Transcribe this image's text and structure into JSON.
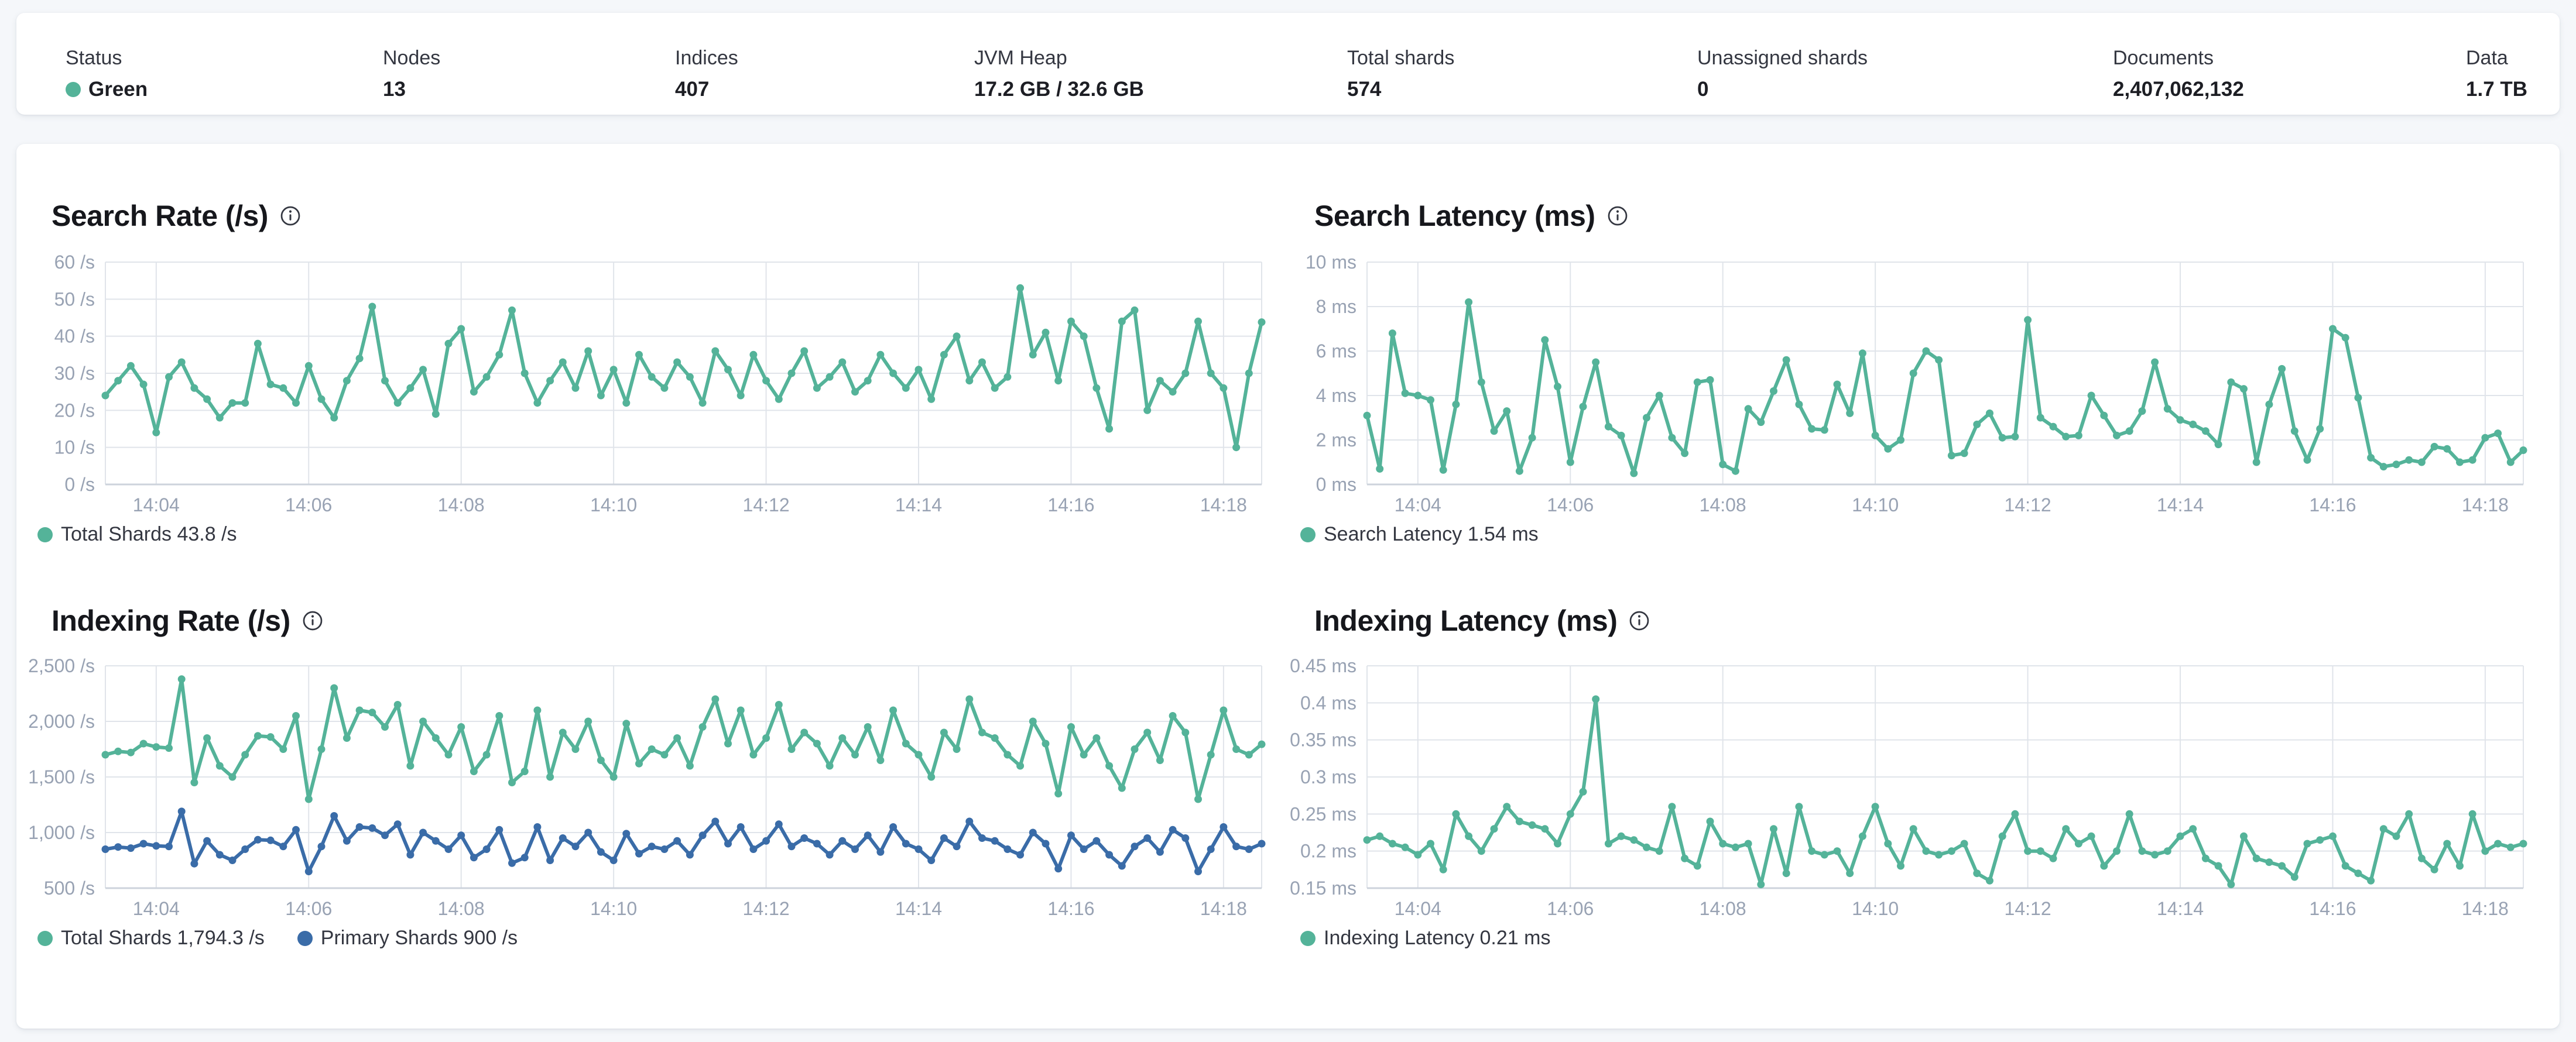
{
  "colors": {
    "teal": "#54B399",
    "blue": "#3A6CA8",
    "status_green": "#54B399",
    "axis_text": "#98A2B3",
    "grid": "#E0E4EA",
    "axis_line": "#CDD3DC"
  },
  "status_bar": {
    "items": [
      {
        "label": "Status",
        "value": "Green",
        "has_dot": true
      },
      {
        "label": "Nodes",
        "value": "13"
      },
      {
        "label": "Indices",
        "value": "407"
      },
      {
        "label": "JVM Heap",
        "value": "17.2 GB / 32.6 GB"
      },
      {
        "label": "Total shards",
        "value": "574"
      },
      {
        "label": "Unassigned shards",
        "value": "0"
      },
      {
        "label": "Documents",
        "value": "2,407,062,132"
      },
      {
        "label": "Data",
        "value": "1.7 TB"
      }
    ]
  },
  "chart_data": [
    {
      "type": "line",
      "title": "Search Rate (/s)",
      "ylim": [
        0,
        60
      ],
      "y_tick_values": [
        0,
        10,
        20,
        30,
        40,
        50,
        60
      ],
      "y_tick_labels": [
        "0 /s",
        "10 /s",
        "20 /s",
        "30 /s",
        "40 /s",
        "50 /s",
        "60 /s"
      ],
      "x_tick_labels": [
        "14:04",
        "14:06",
        "14:08",
        "14:10",
        "14:12",
        "14:14",
        "14:16",
        "14:18"
      ],
      "x_tick_indices": [
        4,
        16,
        28,
        40,
        52,
        64,
        76,
        88
      ],
      "grid": true,
      "legend_position": "bottom",
      "series": [
        {
          "name": "Total Shards",
          "color": "teal",
          "values": [
            24,
            28,
            32,
            27,
            14,
            29,
            33,
            26,
            23,
            18,
            22,
            22,
            38,
            27,
            26,
            22,
            32,
            23,
            18,
            28,
            34,
            48,
            28,
            22,
            26,
            31,
            19,
            38,
            42,
            25,
            29,
            35,
            47,
            30,
            22,
            28,
            33,
            26,
            36,
            24,
            31,
            22,
            35,
            29,
            26,
            33,
            29,
            22,
            36,
            31,
            24,
            35,
            28,
            23,
            30,
            36,
            26,
            29,
            33,
            25,
            28,
            35,
            30,
            26,
            31,
            23,
            35,
            40,
            28,
            33,
            26,
            29,
            53,
            35,
            41,
            28,
            44,
            40,
            26,
            15,
            44,
            47,
            20,
            28,
            25,
            30,
            44,
            30,
            26,
            10,
            30,
            43.8
          ]
        }
      ],
      "legend": [
        {
          "label": "Total Shards 43.8 /s",
          "color": "teal"
        }
      ]
    },
    {
      "type": "line",
      "title": "Search Latency (ms)",
      "ylim": [
        0,
        10
      ],
      "y_tick_values": [
        0,
        2,
        4,
        6,
        8,
        10
      ],
      "y_tick_labels": [
        "0 ms",
        "2 ms",
        "4 ms",
        "6 ms",
        "8 ms",
        "10 ms"
      ],
      "x_tick_labels": [
        "14:04",
        "14:06",
        "14:08",
        "14:10",
        "14:12",
        "14:14",
        "14:16",
        "14:18"
      ],
      "x_tick_indices": [
        4,
        16,
        28,
        40,
        52,
        64,
        76,
        88
      ],
      "grid": true,
      "legend_position": "bottom",
      "series": [
        {
          "name": "Search Latency",
          "color": "teal",
          "values": [
            3.1,
            0.7,
            6.8,
            4.1,
            4.0,
            3.8,
            0.65,
            3.6,
            8.2,
            4.6,
            2.4,
            3.3,
            0.6,
            2.1,
            6.5,
            4.4,
            1.0,
            3.5,
            5.5,
            2.6,
            2.2,
            0.5,
            3.0,
            4.0,
            2.1,
            1.4,
            4.6,
            4.7,
            0.9,
            0.6,
            3.4,
            2.8,
            4.2,
            5.6,
            3.6,
            2.5,
            2.45,
            4.5,
            3.2,
            5.9,
            2.2,
            1.6,
            2.0,
            5.0,
            6.0,
            5.6,
            1.3,
            1.4,
            2.7,
            3.2,
            2.1,
            2.15,
            7.4,
            3.0,
            2.6,
            2.15,
            2.2,
            4.0,
            3.1,
            2.2,
            2.4,
            3.3,
            5.5,
            3.4,
            2.9,
            2.7,
            2.4,
            1.8,
            4.6,
            4.3,
            1.0,
            3.6,
            5.2,
            2.4,
            1.1,
            2.5,
            7.0,
            6.6,
            3.9,
            1.2,
            0.8,
            0.9,
            1.1,
            1.0,
            1.7,
            1.6,
            1.0,
            1.1,
            2.1,
            2.3,
            1.0,
            1.54
          ]
        }
      ],
      "legend": [
        {
          "label": "Search Latency 1.54 ms",
          "color": "teal"
        }
      ]
    },
    {
      "type": "line",
      "title": "Indexing Rate (/s)",
      "ylim": [
        500,
        2500
      ],
      "y_tick_values": [
        500,
        1000,
        1500,
        2000,
        2500
      ],
      "y_tick_labels": [
        "500 /s",
        "1,000 /s",
        "1,500 /s",
        "2,000 /s",
        "2,500 /s"
      ],
      "x_tick_labels": [
        "14:04",
        "14:06",
        "14:08",
        "14:10",
        "14:12",
        "14:14",
        "14:16",
        "14:18"
      ],
      "x_tick_indices": [
        4,
        16,
        28,
        40,
        52,
        64,
        76,
        88
      ],
      "grid": true,
      "legend_position": "bottom",
      "series": [
        {
          "name": "Total Shards",
          "color": "teal",
          "values": [
            1700,
            1730,
            1720,
            1800,
            1770,
            1760,
            2380,
            1450,
            1850,
            1600,
            1500,
            1700,
            1870,
            1860,
            1750,
            2050,
            1300,
            1750,
            2300,
            1850,
            2100,
            2080,
            1950,
            2150,
            1600,
            2000,
            1850,
            1700,
            1950,
            1550,
            1700,
            2050,
            1450,
            1550,
            2100,
            1500,
            1900,
            1750,
            2000,
            1650,
            1500,
            1980,
            1620,
            1750,
            1700,
            1850,
            1600,
            1950,
            2200,
            1800,
            2100,
            1700,
            1850,
            2150,
            1750,
            1900,
            1800,
            1600,
            1850,
            1700,
            1950,
            1650,
            2100,
            1800,
            1700,
            1500,
            1900,
            1750,
            2200,
            1900,
            1850,
            1700,
            1600,
            2000,
            1800,
            1350,
            1950,
            1700,
            1850,
            1600,
            1400,
            1750,
            1900,
            1650,
            2050,
            1900,
            1300,
            1700,
            2100,
            1750,
            1700,
            1794.3
          ]
        },
        {
          "name": "Primary Shards",
          "color": "blue",
          "values": [
            850,
            870,
            860,
            900,
            880,
            875,
            1190,
            720,
            925,
            800,
            750,
            850,
            935,
            930,
            875,
            1025,
            650,
            875,
            1150,
            925,
            1050,
            1040,
            975,
            1075,
            800,
            1000,
            925,
            850,
            975,
            775,
            850,
            1025,
            725,
            775,
            1050,
            750,
            950,
            875,
            1000,
            825,
            750,
            990,
            810,
            875,
            850,
            925,
            800,
            975,
            1100,
            900,
            1050,
            850,
            925,
            1075,
            875,
            950,
            900,
            800,
            925,
            850,
            975,
            825,
            1050,
            900,
            850,
            750,
            950,
            875,
            1100,
            950,
            925,
            850,
            800,
            1000,
            900,
            675,
            975,
            850,
            925,
            800,
            700,
            875,
            950,
            825,
            1025,
            950,
            650,
            850,
            1050,
            875,
            850,
            900
          ]
        }
      ],
      "legend": [
        {
          "label": "Total Shards 1,794.3 /s",
          "color": "teal"
        },
        {
          "label": "Primary Shards 900 /s",
          "color": "blue"
        }
      ]
    },
    {
      "type": "line",
      "title": "Indexing Latency (ms)",
      "ylim": [
        0.15,
        0.45
      ],
      "y_tick_values": [
        0.15,
        0.2,
        0.25,
        0.3,
        0.35,
        0.4,
        0.45
      ],
      "y_tick_labels": [
        "0.15 ms",
        "0.2 ms",
        "0.25 ms",
        "0.3 ms",
        "0.35 ms",
        "0.4 ms",
        "0.45 ms"
      ],
      "x_tick_labels": [
        "14:04",
        "14:06",
        "14:08",
        "14:10",
        "14:12",
        "14:14",
        "14:16",
        "14:18"
      ],
      "x_tick_indices": [
        4,
        16,
        28,
        40,
        52,
        64,
        76,
        88
      ],
      "grid": true,
      "legend_position": "bottom",
      "series": [
        {
          "name": "Indexing Latency",
          "color": "teal",
          "values": [
            0.215,
            0.22,
            0.21,
            0.205,
            0.195,
            0.21,
            0.175,
            0.25,
            0.22,
            0.2,
            0.23,
            0.26,
            0.24,
            0.235,
            0.23,
            0.21,
            0.25,
            0.28,
            0.405,
            0.21,
            0.22,
            0.215,
            0.205,
            0.2,
            0.26,
            0.19,
            0.18,
            0.24,
            0.21,
            0.205,
            0.21,
            0.155,
            0.23,
            0.17,
            0.26,
            0.2,
            0.195,
            0.2,
            0.17,
            0.22,
            0.26,
            0.21,
            0.18,
            0.23,
            0.2,
            0.195,
            0.2,
            0.21,
            0.17,
            0.16,
            0.22,
            0.25,
            0.2,
            0.2,
            0.19,
            0.23,
            0.21,
            0.22,
            0.18,
            0.2,
            0.25,
            0.2,
            0.195,
            0.2,
            0.22,
            0.23,
            0.19,
            0.18,
            0.155,
            0.22,
            0.19,
            0.185,
            0.18,
            0.165,
            0.21,
            0.215,
            0.22,
            0.18,
            0.17,
            0.16,
            0.23,
            0.22,
            0.25,
            0.19,
            0.175,
            0.21,
            0.18,
            0.25,
            0.2,
            0.21,
            0.205,
            0.21
          ]
        }
      ],
      "legend": [
        {
          "label": "Indexing Latency 0.21 ms",
          "color": "teal"
        }
      ]
    }
  ]
}
